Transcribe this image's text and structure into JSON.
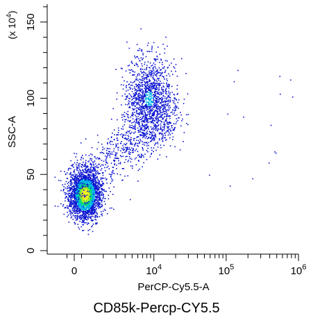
{
  "caption": "CD85k-Percp-CY5.5",
  "chart_data": {
    "type": "scatter",
    "subtype": "flow-cytometry density dot plot (biexponential x, linear y)",
    "xlabel": "PerCP-Cy5.5-A",
    "ylabel": "SSC-A",
    "y_multiplier": "(x 10",
    "y_multiplier_exponent": "4",
    "x_ticks": [
      {
        "value": 0,
        "base": "0",
        "exp": ""
      },
      {
        "value": 10000,
        "base": "10",
        "exp": "4"
      },
      {
        "value": 100000,
        "base": "10",
        "exp": "5"
      },
      {
        "value": 1000000,
        "base": "10",
        "exp": "6"
      }
    ],
    "y_ticks": [
      0,
      50,
      100,
      150
    ],
    "ylim": [
      -3,
      160
    ],
    "populations": [
      {
        "name": "",
        "x_center": 1100,
        "y_center": 37,
        "x_spread": 900,
        "y_spread": 8,
        "density": "high",
        "points": 2600
      },
      {
        "name": "",
        "x_center": 8500,
        "y_center": 100,
        "x_spread": 2600,
        "y_spread": 14,
        "density": "medium",
        "points": 1300
      },
      {
        "name": "",
        "x_center": 3500,
        "y_center": 65,
        "x_spread": 2500,
        "y_spread": 16,
        "density": "low",
        "points": 800
      },
      {
        "name": "",
        "x_center": 60000,
        "y_center": 80,
        "x_spread": 60000,
        "y_spread": 25,
        "density": "sparse",
        "points": 28
      }
    ],
    "color_scale": [
      "#0a14d0",
      "#00b4e6",
      "#00d68a",
      "#9be82a",
      "#f2ee20"
    ],
    "grid": false
  }
}
